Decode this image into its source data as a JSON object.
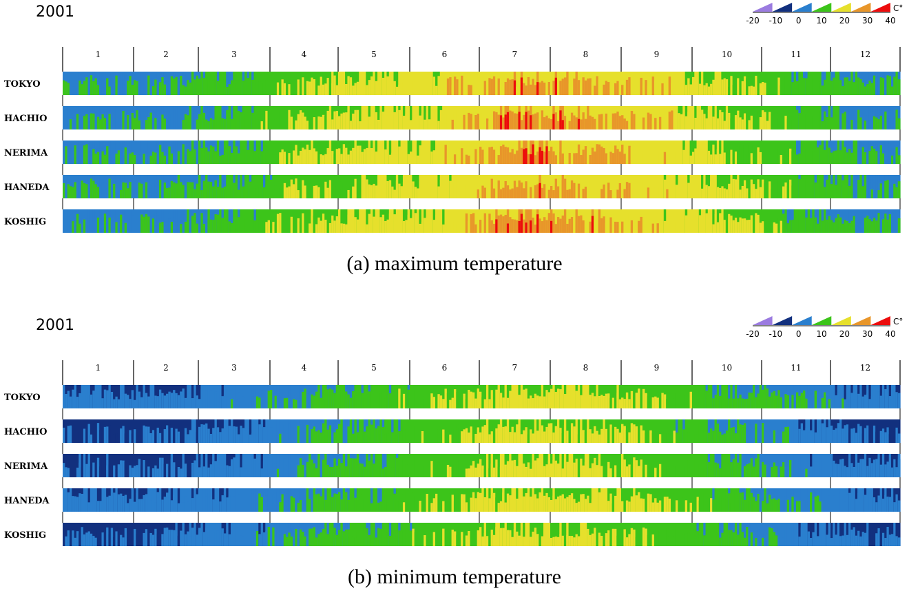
{
  "palette": {
    "purple": "#9b7be0",
    "navy": "#12307e",
    "blue": "#2a7fce",
    "green": "#3cc41a",
    "yellow": "#e6e02c",
    "orange": "#e8962a",
    "red": "#ec0c0c",
    "text": "#000000"
  },
  "colorbar": {
    "unit": "C°",
    "ticks": [
      "-20",
      "-10",
      "0",
      "10",
      "20",
      "30",
      "40"
    ],
    "bins": [
      {
        "from": -20,
        "to": -10,
        "color": "#9b7be0"
      },
      {
        "from": -10,
        "to": 0,
        "color": "#12307e"
      },
      {
        "from": 0,
        "to": 10,
        "color": "#2a7fce"
      },
      {
        "from": 10,
        "to": 20,
        "color": "#3cc41a"
      },
      {
        "from": 20,
        "to": 30,
        "color": "#e6e02c"
      },
      {
        "from": 30,
        "to": 35,
        "color": "#e8962a"
      },
      {
        "from": 35,
        "to": 40,
        "color": "#ec0c0c"
      }
    ]
  },
  "chart_data": [
    {
      "type": "heatmap",
      "year": "2001",
      "caption": "(a) maximum temperature",
      "variable": "maximum temperature",
      "unit": "C°",
      "months": [
        "1",
        "2",
        "3",
        "4",
        "5",
        "6",
        "7",
        "8",
        "9",
        "10",
        "11",
        "12"
      ],
      "stations": [
        "TOKYO",
        "HACHIO",
        "NERIMA",
        "HANEDA",
        "KOSHIG"
      ],
      "monthly_typical_values": [
        {
          "station": "TOKYO",
          "values": [
            10,
            11,
            15,
            21,
            24,
            27,
            33,
            31,
            28,
            22,
            17,
            12
          ]
        },
        {
          "station": "HACHIO",
          "values": [
            9,
            10,
            15,
            21,
            24,
            27,
            34,
            32,
            28,
            22,
            16,
            11
          ]
        },
        {
          "station": "NERIMA",
          "values": [
            9,
            10,
            15,
            21,
            24,
            27,
            34,
            32,
            28,
            22,
            16,
            11
          ]
        },
        {
          "station": "HANEDA",
          "values": [
            10,
            11,
            15,
            20,
            23,
            26,
            32,
            31,
            28,
            23,
            17,
            12
          ]
        },
        {
          "station": "KOSHIG",
          "values": [
            9,
            10,
            15,
            21,
            24,
            27,
            34,
            32,
            28,
            22,
            16,
            11
          ]
        }
      ]
    },
    {
      "type": "heatmap",
      "year": "2001",
      "caption": "(b) minimum temperature",
      "variable": "minimum temperature",
      "unit": "C°",
      "months": [
        "1",
        "2",
        "3",
        "4",
        "5",
        "6",
        "7",
        "8",
        "9",
        "10",
        "11",
        "12"
      ],
      "stations": [
        "TOKYO",
        "HACHIO",
        "NERIMA",
        "HANEDA",
        "KOSHIG"
      ],
      "monthly_typical_values": [
        {
          "station": "TOKYO",
          "values": [
            3,
            4,
            7,
            12,
            16,
            19,
            24,
            24,
            20,
            15,
            10,
            5
          ]
        },
        {
          "station": "HACHIO",
          "values": [
            -1,
            0,
            4,
            10,
            15,
            19,
            23,
            23,
            19,
            13,
            6,
            1
          ]
        },
        {
          "station": "NERIMA",
          "values": [
            1,
            2,
            5,
            11,
            15,
            19,
            24,
            23,
            20,
            14,
            8,
            3
          ]
        },
        {
          "station": "HANEDA",
          "values": [
            3,
            4,
            7,
            12,
            16,
            20,
            24,
            24,
            21,
            16,
            10,
            5
          ]
        },
        {
          "station": "KOSHIG",
          "values": [
            0,
            1,
            5,
            11,
            15,
            19,
            23,
            23,
            19,
            14,
            7,
            2
          ]
        }
      ]
    }
  ]
}
